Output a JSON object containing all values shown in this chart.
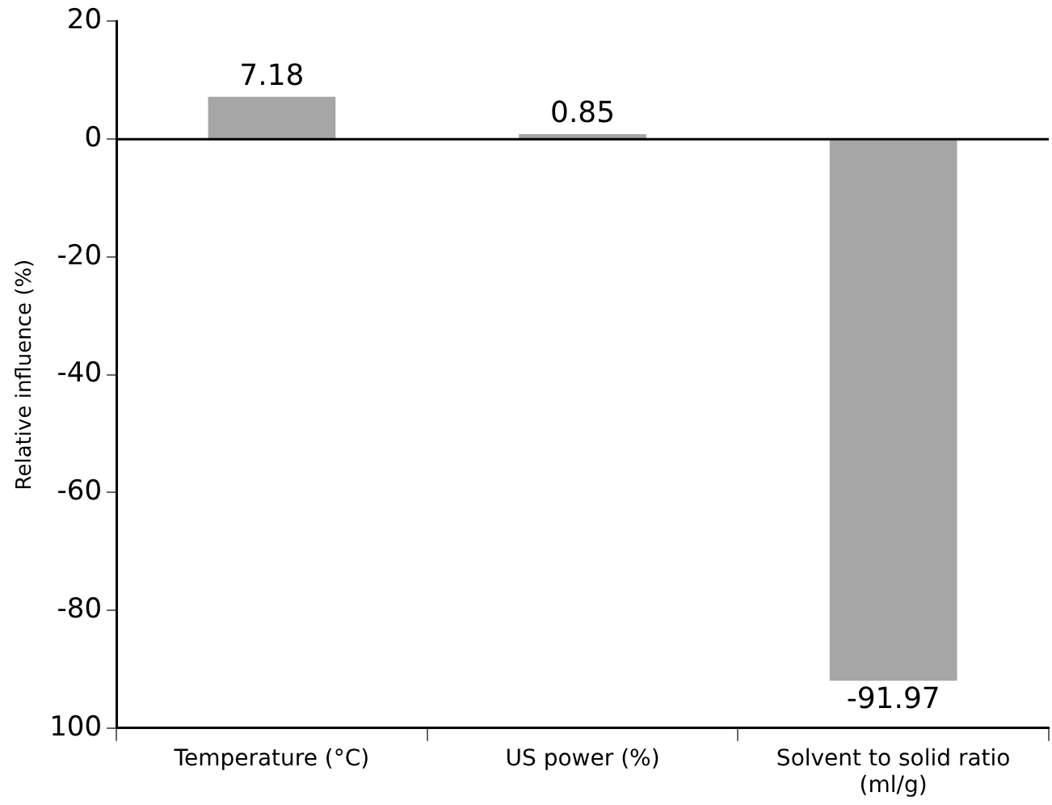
{
  "chart_data": {
    "type": "bar",
    "ylabel": "Relative influence (%)",
    "categories": [
      "Temperature (°C)",
      "US power (%)",
      "Solvent to solid ratio (ml/g)"
    ],
    "values": [
      7.18,
      0.85,
      -91.97
    ],
    "color": "#a6a6a6",
    "ylim": [
      -100,
      20
    ],
    "yticks": [
      {
        "value": -100,
        "label": "100"
      },
      -80,
      -60,
      -40,
      -20,
      0,
      20
    ],
    "ref_lines": [
      {
        "axis": "y",
        "value": 0,
        "color": "#000000"
      }
    ],
    "grid": false,
    "legend": false,
    "data_labels": true
  }
}
